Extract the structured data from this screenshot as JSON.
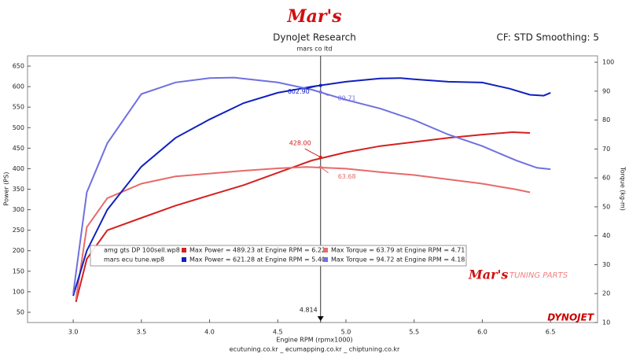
{
  "chart_data": {
    "type": "line",
    "logo": "Mar's",
    "title": "DynoJet Research",
    "subtitle": "mars co ltd",
    "settings_text": "CF: STD Smoothing: 5",
    "xlabel": "Engine RPM (rpmx1000)",
    "ylabel": "Power (PS)",
    "y2label": "Torque (kg-m)",
    "footer": "ecutuning.co.kr _ ecumapping.co.kr _ chiptuning.co.kr",
    "watermark": {
      "brand": "Mar's",
      "tag": "TUNING PARTS",
      "maker": "DYNOJET"
    },
    "xlim": [
      2.665,
      6.845
    ],
    "ylim": [
      25,
      675
    ],
    "y2lim": [
      10,
      102.2
    ],
    "xticks": [
      {
        "value": 3,
        "label": "3.0"
      },
      3.5,
      {
        "value": 4,
        "label": "4.0"
      },
      4.5,
      {
        "value": 5,
        "label": "5.0"
      },
      5.5,
      {
        "value": 6,
        "label": "6.0"
      },
      6.5
    ],
    "yticks": [
      50,
      100,
      150,
      200,
      250,
      300,
      350,
      400,
      450,
      500,
      550,
      600,
      650
    ],
    "y2ticks": [
      10,
      20,
      30,
      40,
      50,
      60,
      70,
      80,
      90,
      100
    ],
    "series": [
      {
        "color": "#d42020",
        "x": [
          3.02,
          3.1,
          3.25,
          3.5,
          3.75,
          4.0,
          4.25,
          4.5,
          4.75,
          5.0,
          5.25,
          5.5,
          5.75,
          6.0,
          6.22,
          6.35
        ],
        "values": [
          75,
          180,
          250,
          280,
          310,
          335,
          360,
          390,
          420,
          440,
          455,
          465,
          475,
          483,
          489,
          487
        ]
      },
      {
        "color": "#e86a6a",
        "axis": "y2",
        "x": [
          3.02,
          3.1,
          3.25,
          3.5,
          3.75,
          4.0,
          4.25,
          4.5,
          4.71,
          5.0,
          5.25,
          5.5,
          5.75,
          6.0,
          6.25,
          6.35
        ],
        "values": [
          18,
          43,
          53,
          58,
          60.5,
          61.5,
          62.5,
          63.3,
          63.8,
          63.2,
          62,
          61,
          59.5,
          58,
          56,
          55
        ]
      },
      {
        "color": "#1020c0",
        "x": [
          3.0,
          3.1,
          3.25,
          3.5,
          3.75,
          4.0,
          4.25,
          4.5,
          4.75,
          5.0,
          5.25,
          5.4,
          5.5,
          5.75,
          6.0,
          6.2,
          6.35,
          6.45,
          6.5
        ],
        "values": [
          90,
          200,
          300,
          405,
          475,
          520,
          560,
          585,
          600,
          612,
          620,
          621,
          618,
          612,
          610,
          595,
          580,
          578,
          585
        ]
      },
      {
        "color": "#7070e0",
        "axis": "y2",
        "x": [
          3.0,
          3.1,
          3.25,
          3.5,
          3.75,
          4.0,
          4.18,
          4.5,
          4.75,
          5.0,
          5.25,
          5.5,
          5.75,
          6.0,
          6.25,
          6.4,
          6.5
        ],
        "values": [
          20,
          55,
          72,
          89,
          93,
          94.5,
          94.7,
          93,
          90.5,
          87,
          84,
          80,
          75,
          71,
          66,
          63.5,
          63
        ]
      }
    ],
    "cursor": 4.814,
    "cursor_values": [
      {
        "value": 602.9,
        "label": "602.90",
        "color": "#1020c0"
      },
      {
        "value": 89.71,
        "label": "89.71",
        "color": "#7070e0",
        "axis": "y2"
      },
      {
        "value": 428,
        "label": "428.00",
        "color": "#d42020"
      },
      {
        "value": 63.68,
        "label": "63.68",
        "color": "#e86a6a",
        "axis": "y2"
      }
    ],
    "legend": [
      {
        "file": "amg gts DP 100sell.wp8",
        "power": "Max Power = 489.23 at Engine RPM = 6.22",
        "torque": "Max Torque = 63.79 at Engine RPM = 4.71"
      },
      {
        "file": "mars ecu tune.wp8",
        "power": "Max Power = 621.28 at Engine RPM = 5.40",
        "torque": "Max Torque = 94.72 at Engine RPM = 4.18"
      }
    ]
  }
}
